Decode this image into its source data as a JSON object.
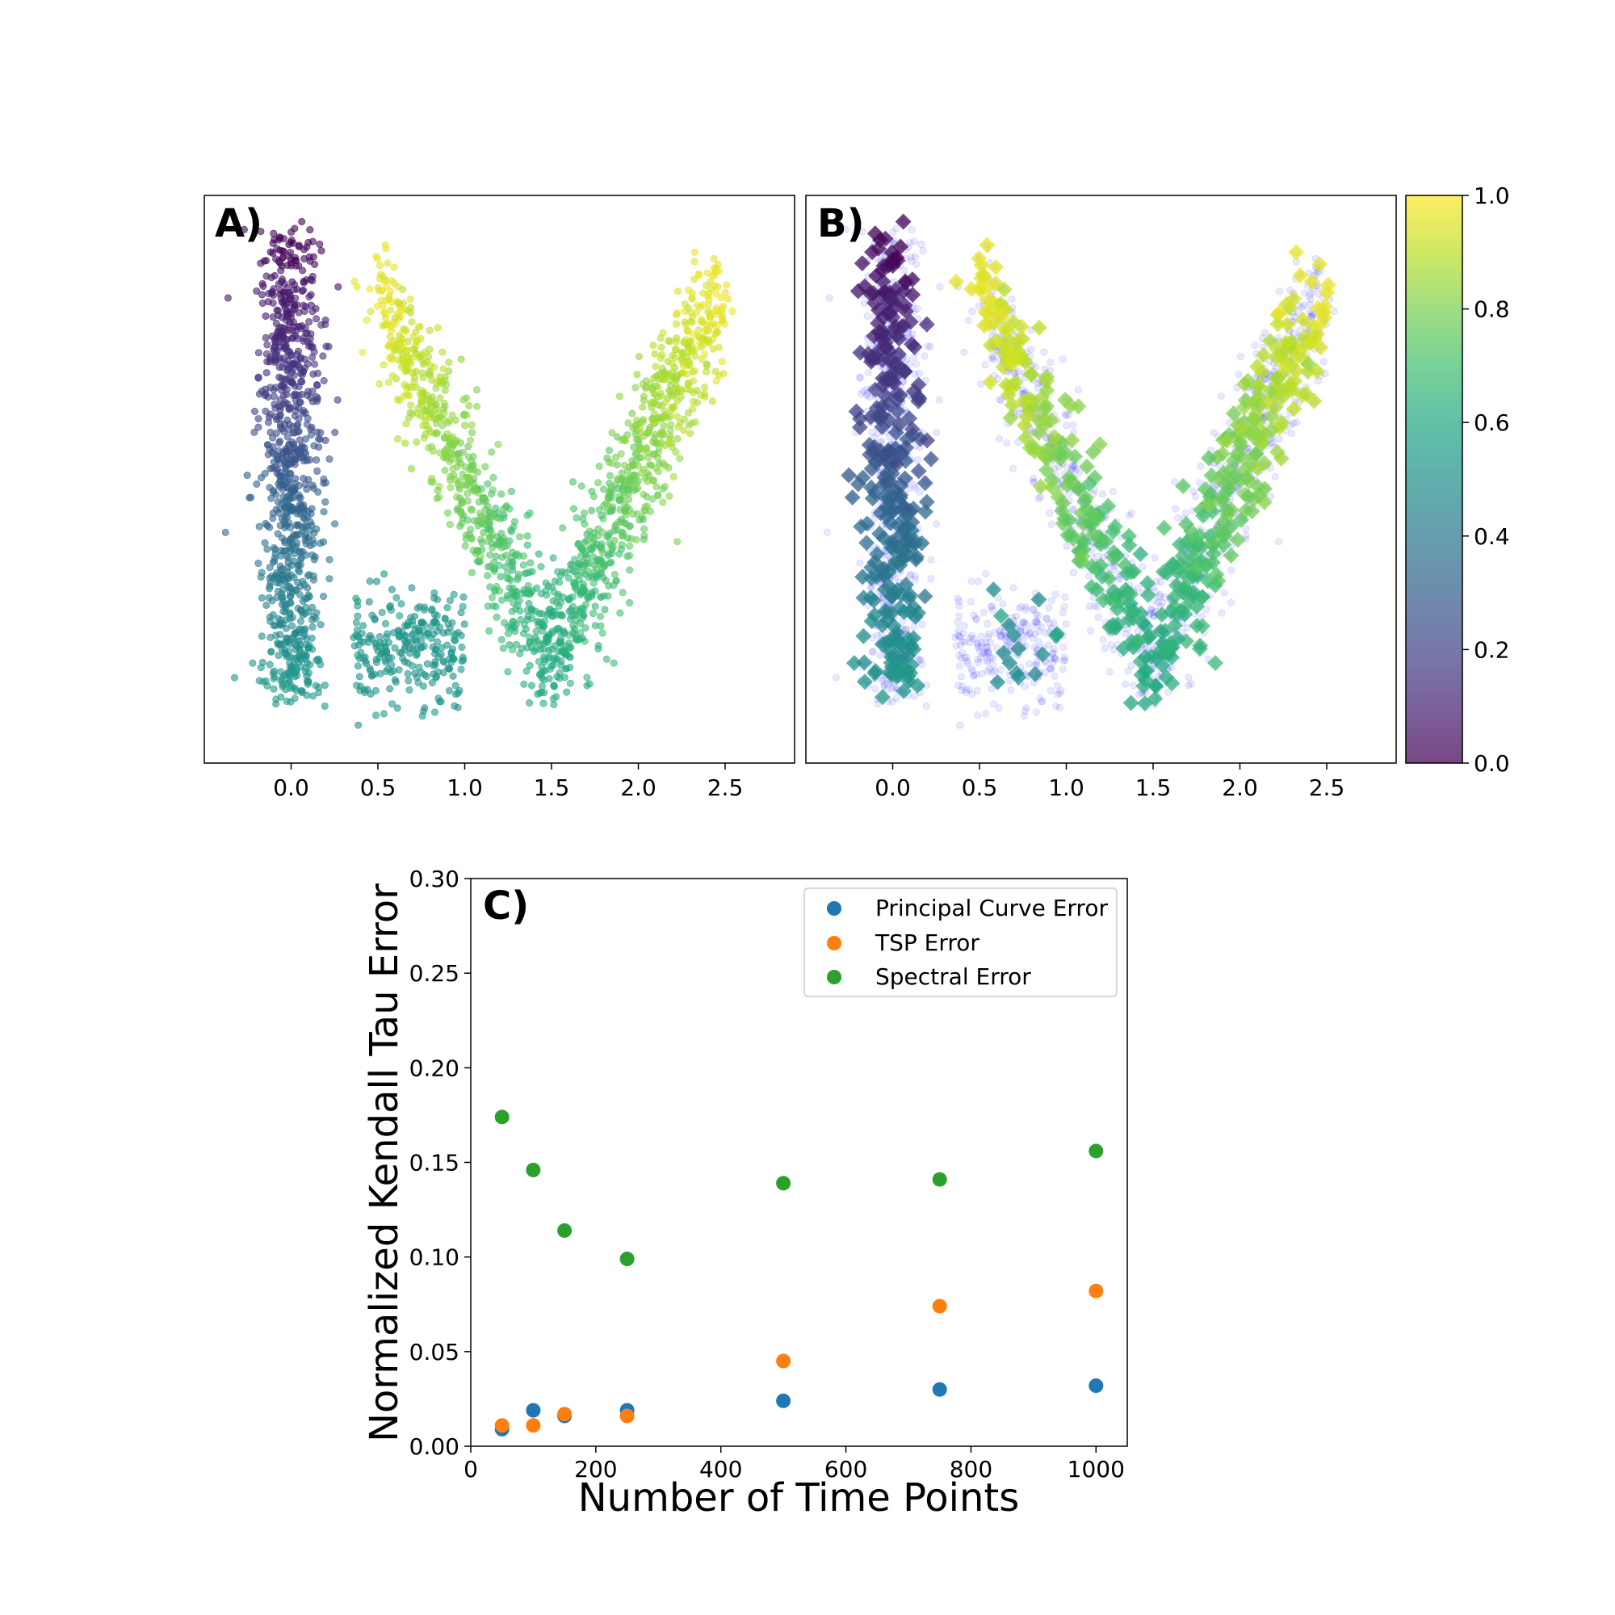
{
  "panels": {
    "a": {
      "label": "A)"
    },
    "b": {
      "label": "B)"
    },
    "c": {
      "label": "C)"
    }
  },
  "colorbar": {
    "ticks": [
      "0.0",
      "0.2",
      "0.4",
      "0.6",
      "0.8",
      "1.0"
    ],
    "colormap": "viridis"
  },
  "colors": {
    "principal": "#1f77b4",
    "tsp": "#ff7f0e",
    "spectral": "#2ca02c",
    "background_points": "#0000ff"
  },
  "chart_data": [
    {
      "id": "A",
      "type": "scatter",
      "title": "",
      "xlabel": "",
      "ylabel": "",
      "xlim": [
        -0.5,
        2.9
      ],
      "xticks": [
        0.0,
        0.5,
        1.0,
        1.5,
        2.0,
        2.5
      ],
      "xtick_labels": [
        "0.0",
        "0.5",
        "1.0",
        "1.5",
        "2.0",
        "2.5"
      ],
      "yticks": [],
      "color_by": "pseudotime",
      "color_range": [
        0.0,
        1.0
      ],
      "point_clusters": [
        {
          "name": "left-column",
          "x_range": [
            -0.28,
            0.25
          ],
          "t_top": 0.0,
          "t_bottom": 0.55
        },
        {
          "name": "lower-branch",
          "x_range": [
            0.35,
            1.0
          ],
          "t": 0.55
        },
        {
          "name": "v-left-arm",
          "x_range": [
            0.35,
            1.4
          ],
          "t_top": 1.0,
          "t_bottom": 0.6
        },
        {
          "name": "v-right-arm",
          "x_range": [
            1.4,
            2.7
          ],
          "t_bottom": 0.6,
          "t_top": 1.0
        }
      ]
    },
    {
      "id": "B",
      "type": "scatter",
      "title": "",
      "xlabel": "",
      "ylabel": "",
      "xlim": [
        -0.5,
        2.9
      ],
      "xticks": [
        0.0,
        0.5,
        1.0,
        1.5,
        2.0,
        2.5
      ],
      "xtick_labels": [
        "0.0",
        "0.5",
        "1.0",
        "1.5",
        "2.0",
        "2.5"
      ],
      "yticks": [],
      "marker": "diamond",
      "background": "raw cells in blue",
      "color_by": "pseudotime",
      "color_range": [
        0.0,
        1.0
      ]
    },
    {
      "id": "C",
      "type": "scatter",
      "title": "",
      "xlabel": "Number of Time Points",
      "ylabel": "Normalized Kendall Tau Error",
      "xlim": [
        0,
        1050
      ],
      "ylim": [
        0.0,
        0.3
      ],
      "xticks": [
        0,
        200,
        400,
        600,
        800,
        1000
      ],
      "xtick_labels": [
        "0",
        "200",
        "400",
        "600",
        "800",
        "1000"
      ],
      "yticks": [
        0.0,
        0.05,
        0.1,
        0.15,
        0.2,
        0.25,
        0.3
      ],
      "ytick_labels": [
        "0.00",
        "0.05",
        "0.10",
        "0.15",
        "0.20",
        "0.25",
        "0.30"
      ],
      "legend_position": "top-right",
      "series": [
        {
          "name": "Principal Curve Error",
          "x": [
            50,
            100,
            150,
            250,
            500,
            750,
            1000
          ],
          "y": [
            0.009,
            0.019,
            0.016,
            0.019,
            0.024,
            0.03,
            0.032
          ]
        },
        {
          "name": "TSP Error",
          "x": [
            50,
            100,
            150,
            250,
            500,
            750,
            1000
          ],
          "y": [
            0.011,
            0.011,
            0.017,
            0.016,
            0.045,
            0.074,
            0.082
          ]
        },
        {
          "name": "Spectral Error",
          "x": [
            50,
            100,
            150,
            250,
            500,
            750,
            1000
          ],
          "y": [
            0.174,
            0.146,
            0.114,
            0.099,
            0.139,
            0.141,
            0.156
          ]
        }
      ]
    }
  ]
}
